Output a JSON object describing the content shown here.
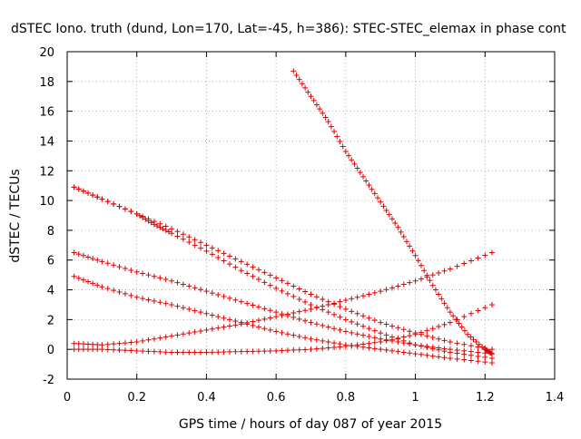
{
  "chart_data": {
    "type": "scatter",
    "title": "dSTEC Iono. truth (dund, Lon=170, Lat=-45, h=386): STEC-STEC_elemax in phase cont",
    "xlabel": "GPS time / hours of day 087 of year 2015",
    "ylabel": "dSTEC  / TECUs",
    "xlim": [
      0,
      1.4
    ],
    "ylim": [
      -2,
      20
    ],
    "xticks": [
      0,
      0.2,
      0.4,
      0.6,
      0.8,
      1,
      1.2,
      1.4
    ],
    "yticks": [
      -2,
      0,
      2,
      4,
      6,
      8,
      10,
      12,
      14,
      16,
      18,
      20
    ],
    "grid": true,
    "marker": "+",
    "marker_color": "#e00000",
    "series": [
      {
        "x": [
          0.65,
          0.7,
          0.75,
          0.8,
          0.85,
          0.9,
          0.95,
          1.0,
          1.05,
          1.1,
          1.15,
          1.2,
          1.22
        ],
        "y": [
          18.7,
          17.0,
          15.3,
          13.3,
          11.6,
          9.9,
          8.2,
          6.3,
          4.3,
          2.5,
          1.0,
          0.0,
          -0.3
        ]
      },
      {
        "x": [
          0.02,
          0.1,
          0.2,
          0.3,
          0.4,
          0.5,
          0.6,
          0.7,
          0.8,
          0.9,
          1.0,
          1.1,
          1.22
        ],
        "y": [
          10.9,
          10.1,
          9.1,
          8.1,
          7.0,
          5.9,
          4.8,
          3.7,
          2.7,
          1.8,
          1.1,
          0.5,
          0.0
        ]
      },
      {
        "x": [
          0.02,
          0.1,
          0.2,
          0.25,
          0.3,
          0.4,
          0.5,
          0.6,
          0.7,
          0.8,
          0.9,
          1.0,
          1.1,
          1.22
        ],
        "y": [
          10.9,
          10.1,
          9.1,
          8.4,
          7.8,
          6.6,
          5.3,
          4.1,
          3.0,
          2.0,
          1.1,
          0.3,
          -0.2,
          -0.6
        ]
      },
      {
        "x": [
          0.02,
          0.1,
          0.2,
          0.3,
          0.4,
          0.5,
          0.6,
          0.7,
          0.8,
          0.9,
          1.0,
          1.1,
          1.22
        ],
        "y": [
          6.5,
          5.9,
          5.2,
          4.6,
          3.9,
          3.2,
          2.5,
          1.8,
          1.2,
          0.7,
          0.3,
          0.0,
          -0.3
        ]
      },
      {
        "x": [
          0.02,
          0.1,
          0.2,
          0.3,
          0.4,
          0.5,
          0.6,
          0.7,
          0.8,
          0.9,
          1.0,
          1.1,
          1.22
        ],
        "y": [
          4.9,
          4.2,
          3.5,
          3.0,
          2.4,
          1.8,
          1.2,
          0.7,
          0.3,
          0.0,
          -0.3,
          -0.6,
          -0.9
        ]
      },
      {
        "x": [
          0.02,
          0.1,
          0.2,
          0.3,
          0.4,
          0.5,
          0.6,
          0.7,
          0.8,
          0.9,
          1.0,
          1.1,
          1.22
        ],
        "y": [
          0.4,
          0.3,
          0.5,
          0.9,
          1.3,
          1.7,
          2.2,
          2.7,
          3.3,
          3.9,
          4.6,
          5.4,
          6.5
        ]
      },
      {
        "x": [
          0.02,
          0.1,
          0.2,
          0.3,
          0.4,
          0.5,
          0.6,
          0.7,
          0.8,
          0.9,
          1.0,
          1.1,
          1.22
        ],
        "y": [
          0.0,
          0.0,
          -0.1,
          -0.2,
          -0.2,
          -0.15,
          -0.1,
          0.0,
          0.2,
          0.5,
          1.0,
          1.8,
          3.0
        ]
      }
    ]
  }
}
